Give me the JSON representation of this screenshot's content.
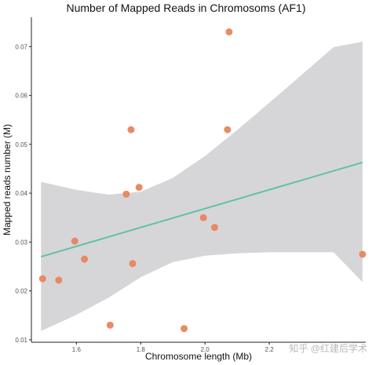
{
  "chart_data": {
    "type": "scatter",
    "title": "Number of Mapped Reads in Chromosoms (AF1)",
    "xlabel": "Chromosome length (Mb)",
    "ylabel": "Mapped reads number (M)",
    "xlim": [
      1.46,
      2.5
    ],
    "ylim": [
      0.0095,
      0.076
    ],
    "x_ticks": [
      "1.6",
      "1.8",
      "2.0",
      "2.2"
    ],
    "y_ticks": [
      "0.01",
      "0.02",
      "0.03",
      "0.04",
      "0.05",
      "0.06",
      "0.07"
    ],
    "grid": false,
    "point_color": "#e8855f",
    "fit_color": "#5fc2a3",
    "band_color": "#d6d6d8",
    "points": [
      {
        "x": 1.495,
        "y": 0.0225
      },
      {
        "x": 1.545,
        "y": 0.0222
      },
      {
        "x": 1.595,
        "y": 0.0302
      },
      {
        "x": 1.625,
        "y": 0.0265
      },
      {
        "x": 1.705,
        "y": 0.013
      },
      {
        "x": 1.755,
        "y": 0.0398
      },
      {
        "x": 1.77,
        "y": 0.053
      },
      {
        "x": 1.775,
        "y": 0.0256
      },
      {
        "x": 1.795,
        "y": 0.0412
      },
      {
        "x": 1.935,
        "y": 0.0123
      },
      {
        "x": 1.995,
        "y": 0.035
      },
      {
        "x": 2.03,
        "y": 0.033
      },
      {
        "x": 2.07,
        "y": 0.053
      },
      {
        "x": 2.075,
        "y": 0.073
      },
      {
        "x": 2.49,
        "y": 0.0275
      }
    ],
    "fit_line": {
      "x": [
        1.49,
        2.49
      ],
      "y": [
        0.027,
        0.0463
      ]
    },
    "confidence_band": {
      "x": [
        1.49,
        1.6,
        1.7,
        1.8,
        1.9,
        2.0,
        2.1,
        2.2,
        2.3,
        2.4,
        2.49
      ],
      "upper": [
        0.0423,
        0.0407,
        0.0397,
        0.0403,
        0.0431,
        0.0476,
        0.0529,
        0.0585,
        0.0642,
        0.0699,
        0.071
      ],
      "lower": [
        0.0118,
        0.0151,
        0.0186,
        0.0228,
        0.0259,
        0.0272,
        0.0277,
        0.0279,
        0.0279,
        0.0279,
        0.0218
      ]
    }
  },
  "watermark": "知乎 @红建后学术"
}
